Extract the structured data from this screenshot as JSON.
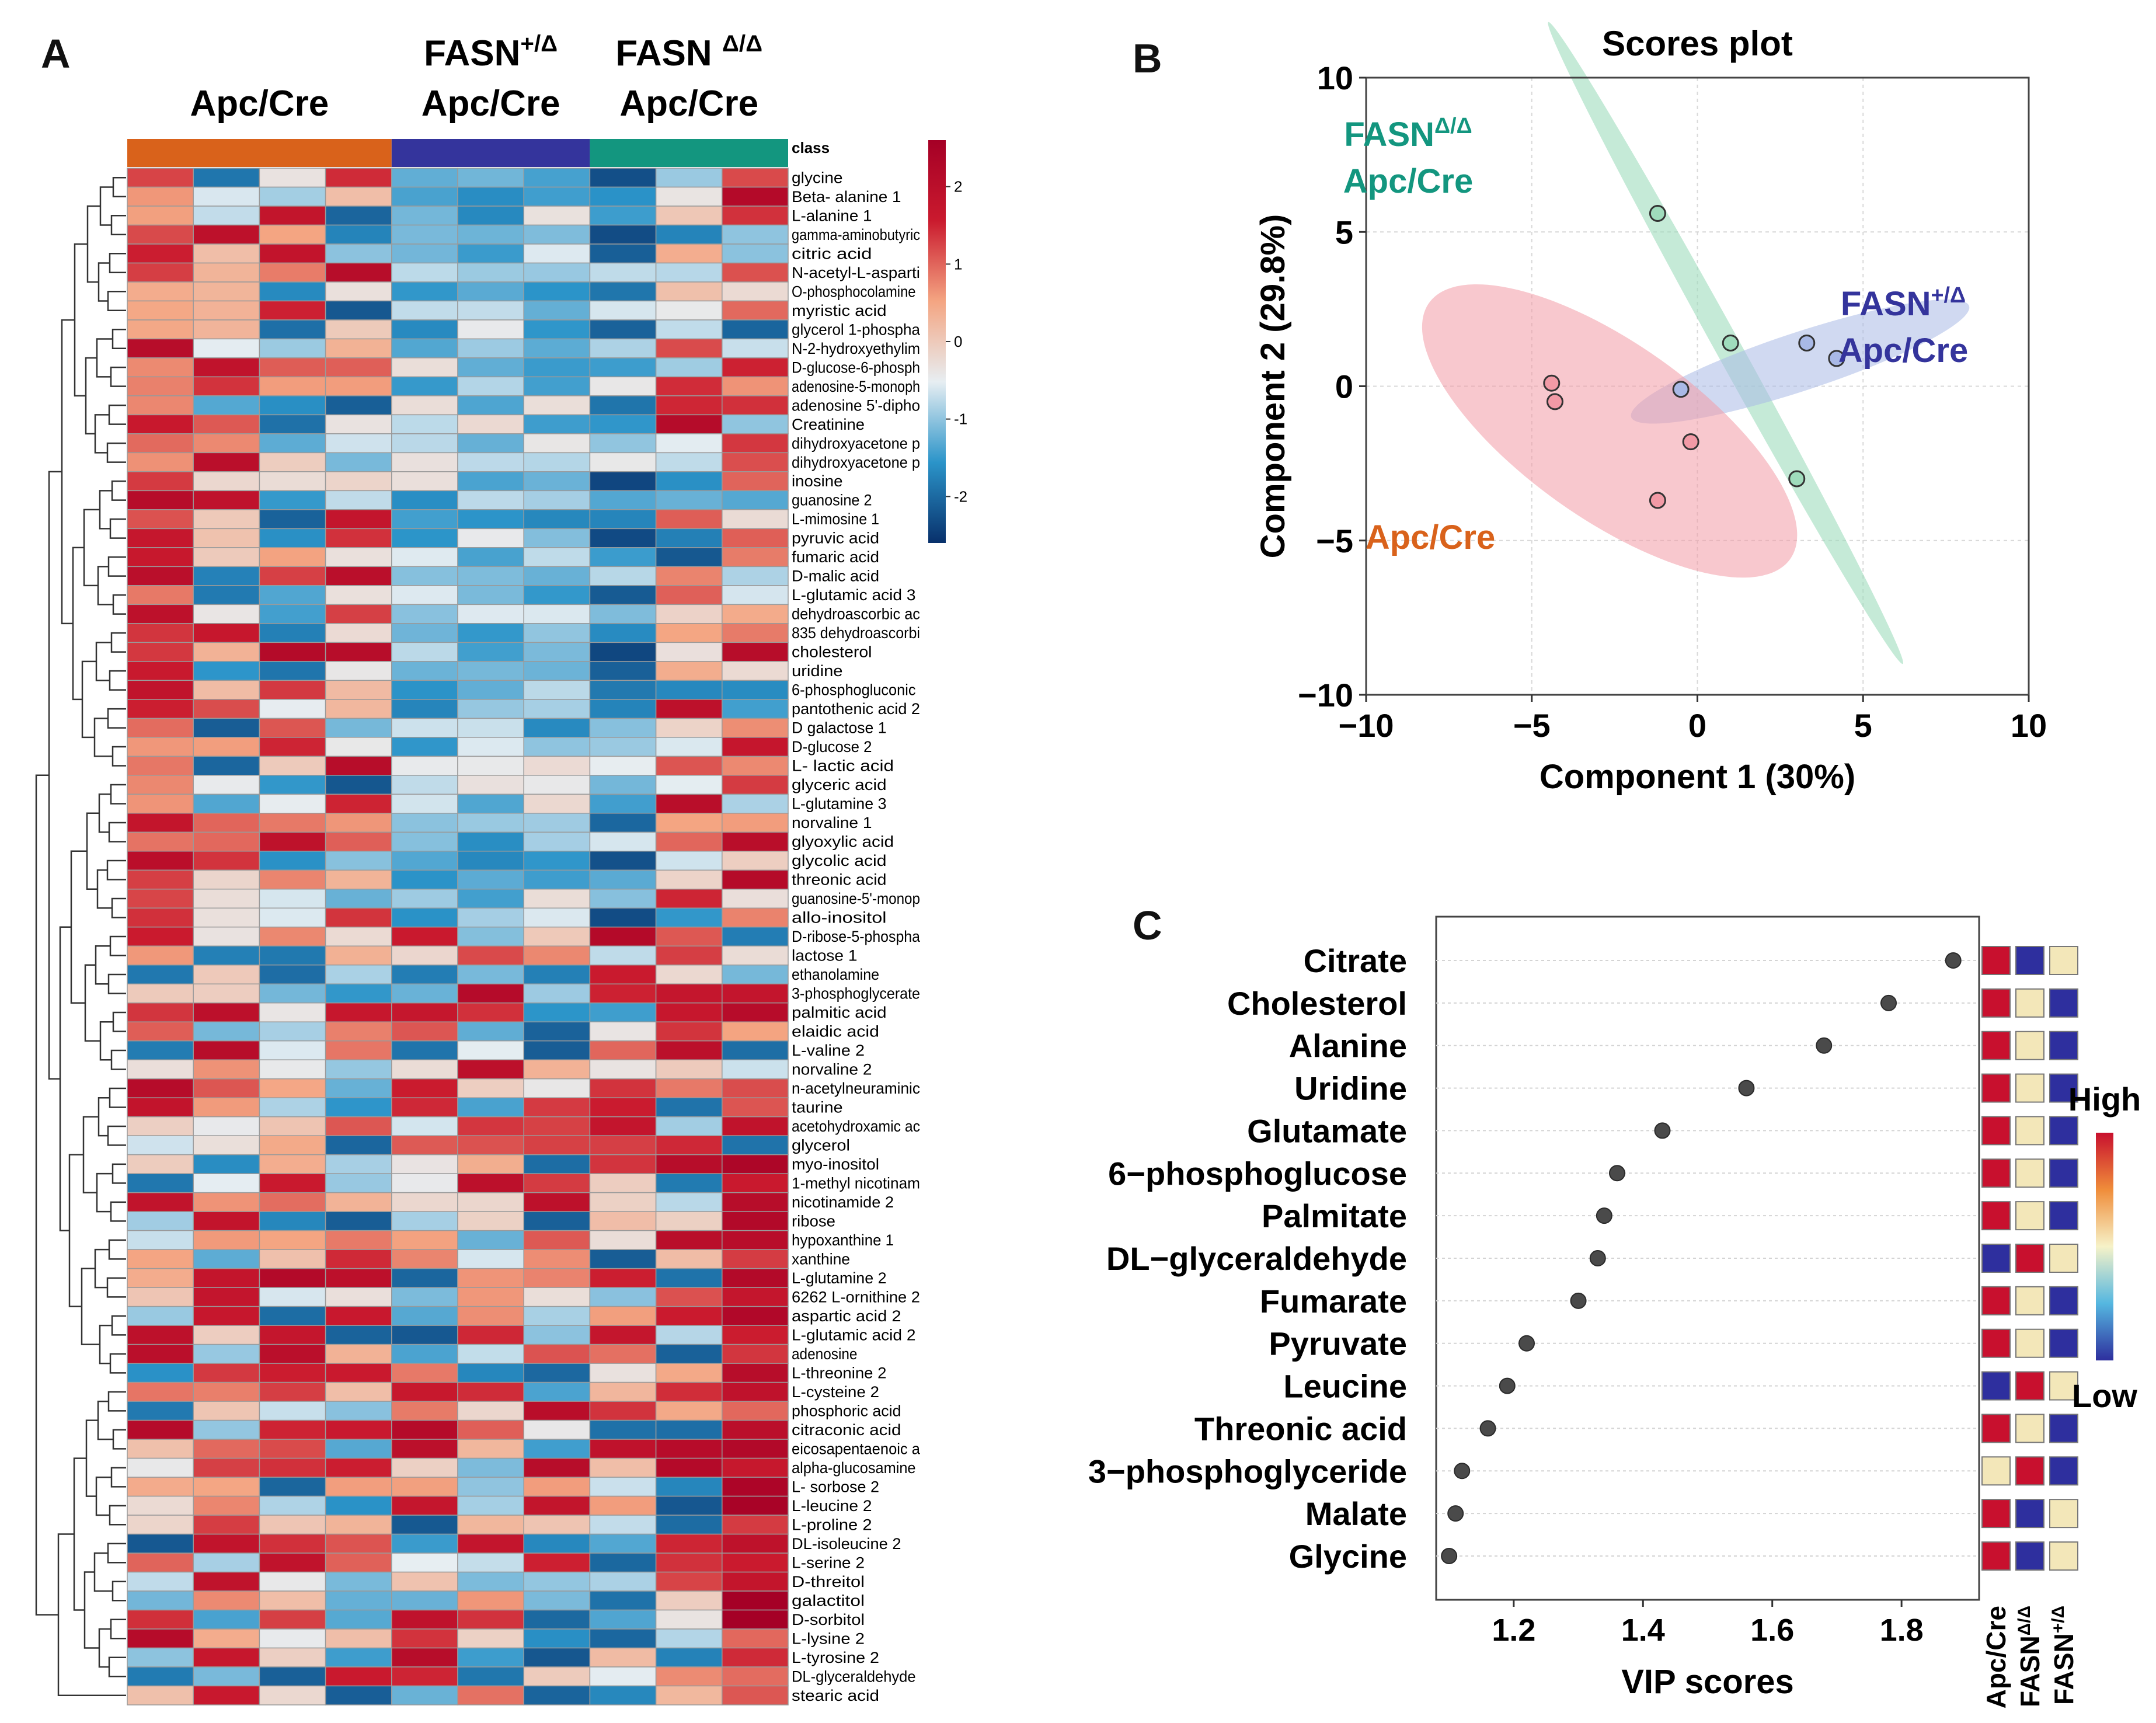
{
  "panels": {
    "a": "A",
    "b": "B",
    "c": "C"
  },
  "chart_data": [
    {
      "type": "heatmap",
      "panel": "A",
      "group_headers": [
        {
          "line1": "",
          "line2": "Apc/Cre",
          "sup": "",
          "color": "#d9621b"
        },
        {
          "line1": "FASN",
          "sup": "+/Δ",
          "line2": "Apc/Cre",
          "color": "#34349c"
        },
        {
          "line1": "FASN ",
          "sup": "Δ/Δ",
          "line2": "Apc/Cre",
          "color": "#13967f"
        }
      ],
      "class_label": "class",
      "group_sizes": [
        4,
        3,
        3
      ],
      "colorbar": {
        "ticks": [
          "2",
          "1",
          "0",
          "-1",
          "-2"
        ],
        "range": [
          -2.6,
          2.6
        ],
        "colors": [
          "#08306b",
          "#2b94c9",
          "#e7eef2",
          "#f4a582",
          "#ca1a2e",
          "#a50026"
        ]
      },
      "rows": [
        "glycine",
        "Beta- alanine 1",
        "L-alanine 1",
        "gamma-aminobutyric",
        "citric acid",
        "N-acetyl-L-asparti",
        "O-phosphocolamine",
        "myristic acid",
        "glycerol 1-phospha",
        "N-2-hydroxyethylim",
        "D-glucose-6-phosph",
        "adenosine-5-monoph",
        "adenosine 5'-dipho",
        "Creatinine",
        "dihydroxyacetone p",
        "dihydroxyacetone p",
        "inosine",
        "guanosine 2",
        "L-mimosine 1",
        "pyruvic acid",
        "fumaric acid",
        "D-malic acid",
        "L-glutamic acid 3",
        "dehydroascorbic ac",
        "835 dehydroascorbi",
        "cholesterol",
        "uridine",
        "6-phosphogluconic",
        "pantothenic acid 2",
        "D galactose 1",
        "D-glucose 2",
        "L- lactic acid",
        "glyceric acid",
        "L-glutamine 3",
        "norvaline 1",
        "glyoxylic acid",
        "glycolic acid",
        "threonic acid",
        "guanosine-5'-monop",
        "allo-inositol",
        "D-ribose-5-phospha",
        "lactose 1",
        "ethanolamine",
        "3-phosphoglycerate",
        "palmitic acid",
        "elaidic acid",
        "L-valine 2",
        "norvaline 2",
        "n-acetylneuraminic",
        "taurine",
        "acetohydroxamic ac",
        "glycerol",
        "myo-inositol",
        "1-methyl nicotinam",
        "nicotinamide 2",
        "ribose",
        "hypoxanthine 1",
        "xanthine",
        "L-glutamine 2",
        "6262 L-ornithine 2",
        "aspartic acid 2",
        "L-glutamic acid 2",
        "adenosine",
        "L-threonine 2",
        "L-cysteine 2",
        "phosphoric acid",
        "citraconic acid",
        "eicosapentaenoic a",
        "alpha-glucosamine",
        "L- sorbose 2",
        "L-leucine 2",
        "L-proline 2",
        "DL-isoleucine 2",
        "L-serine 2",
        "D-threitol",
        "galactitol",
        "D-sorbitol",
        "L-lysine 2",
        "L-tyrosine 2",
        "DL-glyceraldehyde",
        "stearic acid"
      ]
    },
    {
      "type": "scatter",
      "panel": "B",
      "title": "Scores plot",
      "xlabel": "Component 1 (30%)",
      "ylabel": "Component 2 (29.8%)",
      "xlim": [
        -10,
        10
      ],
      "ylim": [
        -10,
        10
      ],
      "xticks": [
        "−10",
        "−5",
        "0",
        "5",
        "10"
      ],
      "yticks": [
        "10",
        "5",
        "0",
        "−5",
        "−10"
      ],
      "series": [
        {
          "name": "FASN",
          "sup": "Δ/Δ",
          "line2": "Apc/Cre",
          "color": "#13967f",
          "fill": "#9fdcbc",
          "points": [
            [
              -1.2,
              5.6
            ],
            [
              1.0,
              1.4
            ],
            [
              3.0,
              -3.0
            ]
          ]
        },
        {
          "name": "FASN",
          "sup": "+/Δ",
          "line2": "Apc/Cre",
          "color": "#34349c",
          "fill": "#a9b9e6",
          "points": [
            [
              -0.5,
              -0.1
            ],
            [
              3.3,
              1.4
            ],
            [
              4.2,
              0.9
            ]
          ]
        },
        {
          "name": "Apc/Cre",
          "sup": "",
          "line2": "",
          "color": "#d9621b",
          "fill": "#f29aa6",
          "points": [
            [
              -4.4,
              0.1
            ],
            [
              -4.3,
              -0.5
            ],
            [
              -0.2,
              -1.8
            ],
            [
              -1.2,
              -3.7
            ]
          ]
        }
      ]
    },
    {
      "type": "scatter",
      "panel": "C",
      "xlabel": "VIP scores",
      "xlim": [
        1.08,
        1.92
      ],
      "xticks": [
        1.2,
        1.4,
        1.6,
        1.8
      ],
      "categories": [
        "Citrate",
        "Cholesterol",
        "Alanine",
        "Uridine",
        "Glutamate",
        "6−phosphoglucose",
        "Palmitate",
        "DL−glyceraldehyde",
        "Fumarate",
        "Pyruvate",
        "Leucine",
        "Threonic acid",
        "3−phosphoglyceride",
        "Malate",
        "Glycine"
      ],
      "values": [
        1.88,
        1.78,
        1.68,
        1.56,
        1.43,
        1.36,
        1.34,
        1.33,
        1.3,
        1.22,
        1.19,
        1.16,
        1.12,
        1.11,
        1.1
      ],
      "group_labels": [
        {
          "text": "Apc/Cre",
          "sup": ""
        },
        {
          "text": "FASN",
          "sup": "Δ/Δ"
        },
        {
          "text": "FASN",
          "sup": "+/Δ"
        }
      ],
      "levels": [
        [
          "H",
          "L",
          "M"
        ],
        [
          "H",
          "M",
          "L"
        ],
        [
          "H",
          "M",
          "L"
        ],
        [
          "H",
          "M",
          "L"
        ],
        [
          "H",
          "M",
          "L"
        ],
        [
          "H",
          "M",
          "L"
        ],
        [
          "H",
          "M",
          "L"
        ],
        [
          "L",
          "H",
          "M"
        ],
        [
          "H",
          "M",
          "L"
        ],
        [
          "H",
          "M",
          "L"
        ],
        [
          "L",
          "H",
          "M"
        ],
        [
          "H",
          "M",
          "L"
        ],
        [
          "M",
          "H",
          "L"
        ],
        [
          "H",
          "L",
          "M"
        ],
        [
          "H",
          "L",
          "M"
        ]
      ],
      "level_colors": {
        "H": "#c8102e",
        "M": "#f3e7b9",
        "L": "#2e2f9e"
      },
      "legend": {
        "high": "High",
        "low": "Low"
      }
    }
  ]
}
